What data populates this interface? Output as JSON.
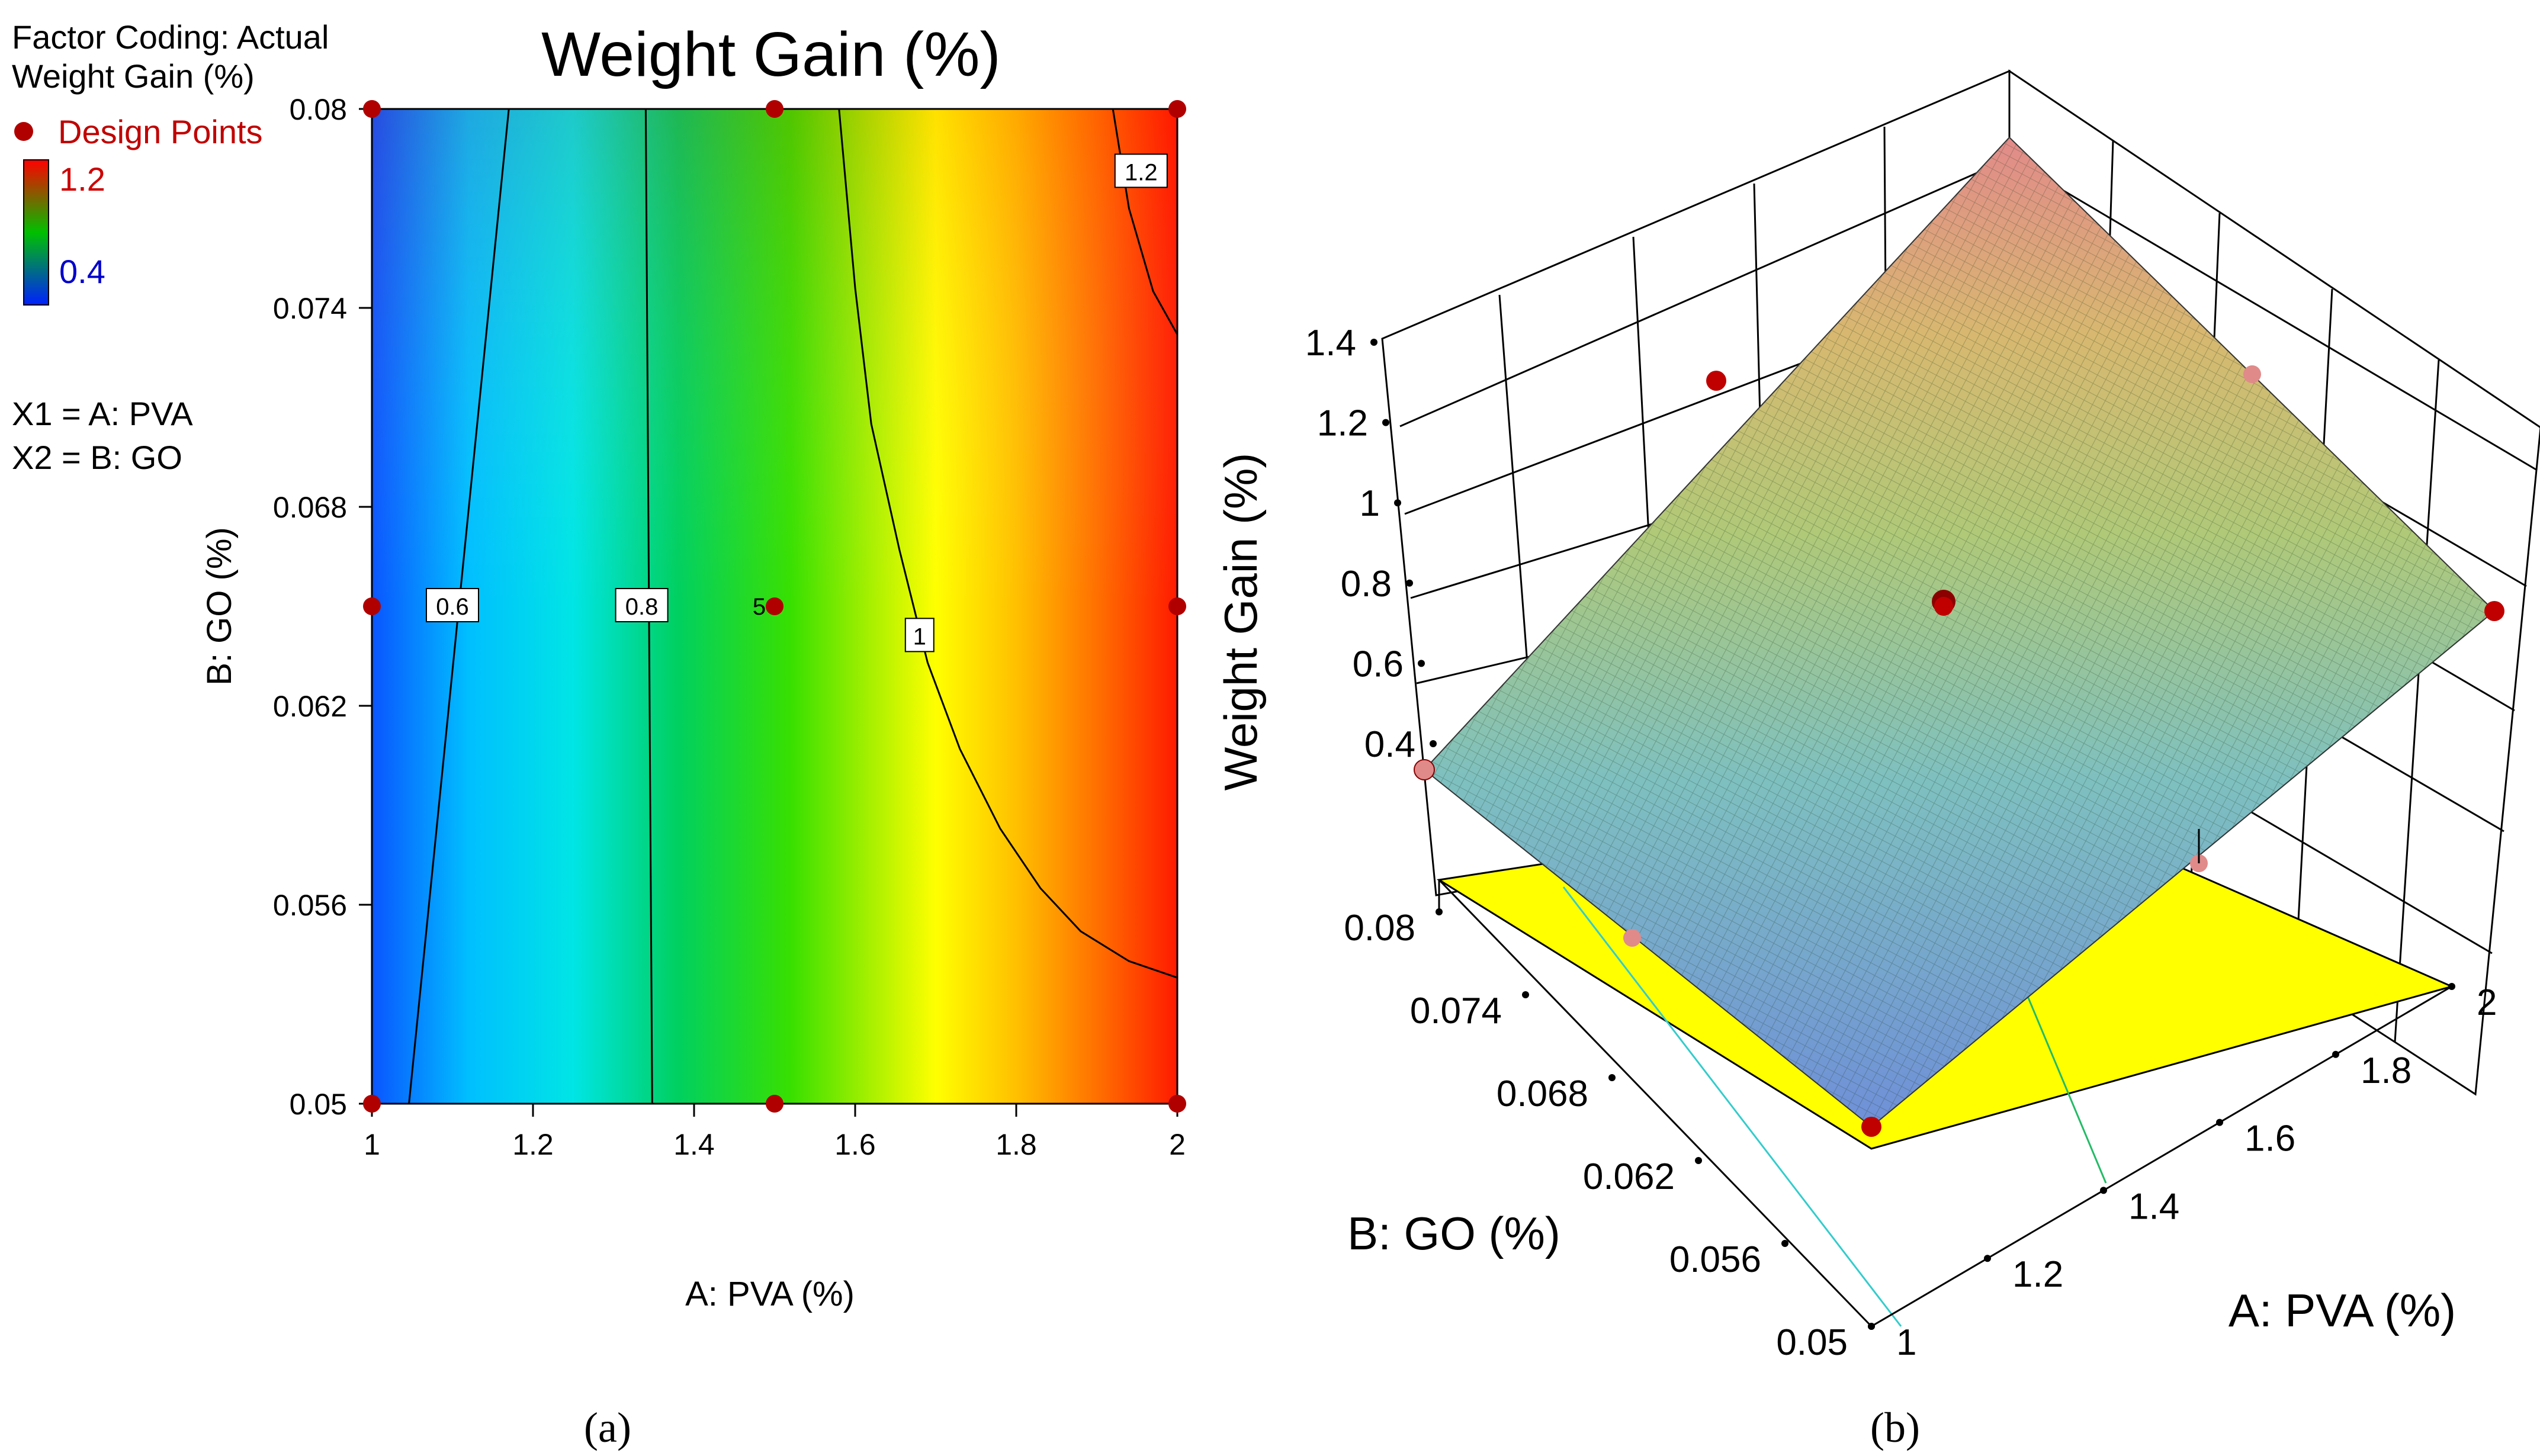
{
  "chart_data": [
    {
      "panel": "a",
      "type": "contour",
      "title": "Weight Gain (%)",
      "xlabel": "A: PVA (%)",
      "ylabel": "B: GO (%)",
      "xlim": [
        1,
        2
      ],
      "ylim": [
        0.05,
        0.08
      ],
      "x_ticks": [
        "1",
        "1.2",
        "1.4",
        "1.6",
        "1.8",
        "2"
      ],
      "y_ticks": [
        "0.05",
        "0.056",
        "0.062",
        "0.068",
        "0.074",
        "0.08"
      ],
      "legend": {
        "factor_coding": "Factor Coding: Actual",
        "response": "Weight Gain (%)",
        "design_points": "Design Points",
        "color_high": "1.2",
        "color_low": "0.4",
        "x1": "X1 = A: PVA",
        "x2": "X2 = B: GO"
      },
      "contours": [
        {
          "label": "0.6",
          "points": [
            [
              1.046,
              0.05
            ],
            [
              1.17,
              0.08
            ]
          ],
          "label_at": [
            1.1,
            0.065
          ]
        },
        {
          "label": "0.8",
          "points": [
            [
              1.348,
              0.05
            ],
            [
              1.34,
              0.08
            ]
          ],
          "label_at": [
            1.335,
            0.065
          ]
        },
        {
          "label": "1",
          "points": [
            [
              1.58,
              0.08
            ],
            [
              1.6,
              0.0746
            ],
            [
              1.62,
              0.0705
            ],
            [
              1.655,
              0.0667
            ],
            [
              1.69,
              0.0633
            ],
            [
              1.73,
              0.0607
            ],
            [
              1.78,
              0.0583
            ],
            [
              1.83,
              0.0565
            ],
            [
              1.88,
              0.0552
            ],
            [
              1.94,
              0.0543
            ],
            [
              2.0,
              0.0538
            ]
          ],
          "label_at": [
            1.68,
            0.0641
          ]
        },
        {
          "label": "1.2",
          "points": [
            [
              1.92,
              0.08
            ],
            [
              1.94,
              0.077
            ],
            [
              1.97,
              0.0745
            ],
            [
              2.0,
              0.0732
            ]
          ],
          "label_at": [
            1.955,
            0.0781
          ]
        }
      ],
      "design_points": [
        {
          "x": 1,
          "y": 0.05
        },
        {
          "x": 1.5,
          "y": 0.05
        },
        {
          "x": 2,
          "y": 0.05
        },
        {
          "x": 1,
          "y": 0.065
        },
        {
          "x": 1.5,
          "y": 0.065,
          "label": "5"
        },
        {
          "x": 2,
          "y": 0.065
        },
        {
          "x": 1,
          "y": 0.08
        },
        {
          "x": 1.5,
          "y": 0.08
        },
        {
          "x": 2,
          "y": 0.08
        }
      ],
      "caption": "(a)"
    },
    {
      "panel": "b",
      "type": "surface3d",
      "zlabel": "Weight Gain (%)",
      "xlabel": "A: PVA (%)",
      "ylabel": "B: GO (%)",
      "z_ticks": [
        "0.4",
        "0.6",
        "0.8",
        "1",
        "1.2",
        "1.4"
      ],
      "x_ticks": [
        "1",
        "1.2",
        "1.4",
        "1.6",
        "1.8",
        "2"
      ],
      "y_ticks": [
        "0.05",
        "0.056",
        "0.062",
        "0.068",
        "0.074",
        "0.08"
      ],
      "zlim": [
        0.4,
        1.4
      ],
      "surface_corners": [
        {
          "pva": 1,
          "go": 0.05,
          "weight_gain": 0.6
        },
        {
          "pva": 2,
          "go": 0.05,
          "weight_gain": 0.9
        },
        {
          "pva": 1,
          "go": 0.08,
          "weight_gain": 0.4
        },
        {
          "pva": 2,
          "go": 0.08,
          "weight_gain": 1.3
        }
      ],
      "caption": "(b)"
    }
  ],
  "colors": {
    "contour_low": "#0040ff",
    "contour_high": "#ff1a00",
    "point": "#b00000",
    "floor": "#ffff00",
    "design_label": "#c00000"
  }
}
